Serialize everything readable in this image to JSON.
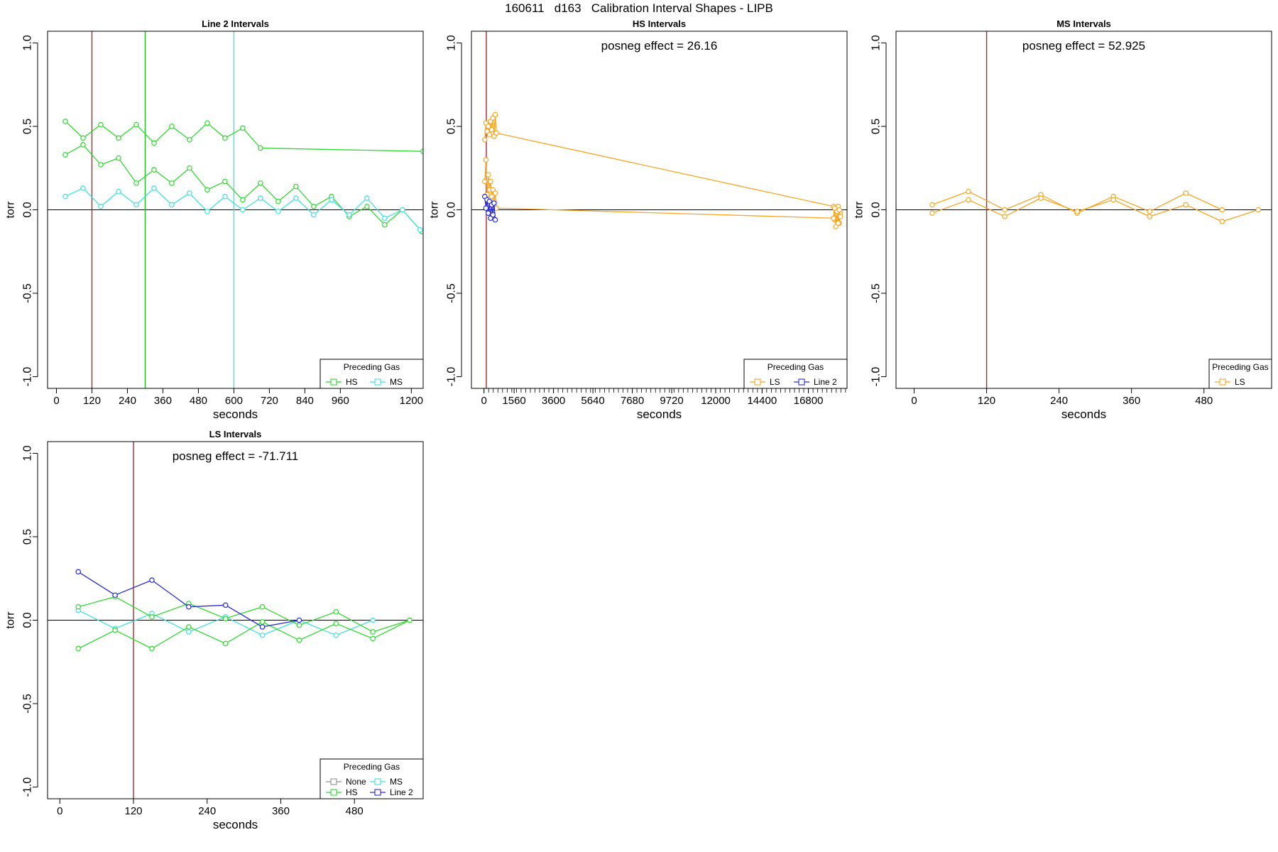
{
  "page": {
    "title": "160611   d163   Calibration Interval Shapes - LIPB"
  },
  "chart_data": [
    {
      "id": "line2",
      "type": "line",
      "title": "Line 2 Intervals",
      "xlabel": "seconds",
      "ylabel": "torr",
      "xlim": [
        -30,
        1240
      ],
      "ylim": [
        -1.07,
        1.07
      ],
      "xticks": [
        0,
        120,
        240,
        360,
        480,
        600,
        720,
        840,
        960,
        1200
      ],
      "yticks": [
        -1.0,
        -0.5,
        0.0,
        0.5,
        1.0
      ],
      "annotation": "",
      "vlines": [
        {
          "x": 120,
          "color": "#a0302a"
        },
        {
          "x": 300,
          "color": "#22c022"
        },
        {
          "x": 600,
          "color": "#30e8e8"
        }
      ],
      "legend": {
        "title": "Preceding Gas",
        "position": "bottom-right",
        "columns": 2
      },
      "series": [
        {
          "name": "HS",
          "color": "#30d830",
          "points": [
            [
              30,
              0.53
            ],
            [
              90,
              0.43
            ],
            [
              150,
              0.51
            ],
            [
              210,
              0.43
            ],
            [
              270,
              0.51
            ],
            [
              330,
              0.4
            ],
            [
              390,
              0.5
            ],
            [
              450,
              0.42
            ],
            [
              510,
              0.52
            ],
            [
              570,
              0.43
            ],
            [
              630,
              0.49
            ],
            [
              690,
              0.37
            ],
            [
              1240,
              0.35
            ]
          ]
        },
        {
          "name": "HS",
          "color": "#30d830",
          "points": [
            [
              30,
              0.33
            ],
            [
              90,
              0.39
            ],
            [
              150,
              0.27
            ],
            [
              210,
              0.31
            ],
            [
              270,
              0.16
            ],
            [
              330,
              0.24
            ],
            [
              390,
              0.16
            ],
            [
              450,
              0.25
            ],
            [
              510,
              0.12
            ],
            [
              570,
              0.17
            ],
            [
              630,
              0.06
            ],
            [
              690,
              0.16
            ],
            [
              750,
              0.05
            ],
            [
              810,
              0.14
            ],
            [
              870,
              0.02
            ],
            [
              930,
              0.08
            ],
            [
              990,
              -0.04
            ],
            [
              1050,
              0.02
            ],
            [
              1110,
              -0.09
            ],
            [
              1170,
              0.0
            ],
            [
              1235,
              -0.13
            ]
          ]
        },
        {
          "name": "MS",
          "color": "#40e0e0",
          "points": [
            [
              30,
              0.08
            ],
            [
              90,
              0.13
            ],
            [
              150,
              0.02
            ],
            [
              210,
              0.11
            ],
            [
              270,
              0.03
            ],
            [
              330,
              0.13
            ],
            [
              390,
              0.03
            ],
            [
              450,
              0.1
            ],
            [
              510,
              -0.01
            ],
            [
              570,
              0.08
            ],
            [
              630,
              0.0
            ],
            [
              690,
              0.07
            ],
            [
              750,
              -0.01
            ],
            [
              810,
              0.07
            ],
            [
              870,
              -0.03
            ],
            [
              930,
              0.06
            ],
            [
              990,
              -0.03
            ],
            [
              1050,
              0.07
            ],
            [
              1110,
              -0.05
            ],
            [
              1170,
              0.0
            ],
            [
              1230,
              -0.12
            ]
          ]
        }
      ]
    },
    {
      "id": "hs",
      "type": "line",
      "title": "HS Intervals",
      "xlabel": "seconds",
      "ylabel": "torr",
      "xlim": [
        -650,
        18800
      ],
      "ylim": [
        -1.07,
        1.07
      ],
      "xticks": [
        0,
        1560,
        3600,
        5640,
        7680,
        9720,
        12000,
        14400,
        16800
      ],
      "yticks": [
        -1.0,
        -0.5,
        0.0,
        0.5,
        1.0
      ],
      "annotation": "posneg effect = 26.16",
      "vlines": [
        {
          "x": 120,
          "color": "#a0302a"
        }
      ],
      "legend": {
        "title": "Preceding Gas",
        "position": "bottom-right",
        "columns": 2
      },
      "series": [
        {
          "name": "LS",
          "color": "#f5a623",
          "points": [
            [
              40,
              0.42
            ],
            [
              100,
              0.52
            ],
            [
              160,
              0.47
            ],
            [
              220,
              0.5
            ],
            [
              280,
              0.45
            ],
            [
              340,
              0.53
            ],
            [
              400,
              0.48
            ],
            [
              460,
              0.55
            ],
            [
              520,
              0.44
            ],
            [
              580,
              0.57
            ],
            [
              640,
              0.46
            ],
            [
              18100,
              0.02
            ],
            [
              18160,
              -0.06
            ],
            [
              18220,
              0.01
            ],
            [
              18280,
              -0.03
            ],
            [
              18340,
              0.02
            ],
            [
              18400,
              -0.08
            ],
            [
              18460,
              -0.02
            ]
          ]
        },
        {
          "name": "LS",
          "color": "#f5a623",
          "points": [
            [
              40,
              0.17
            ],
            [
              100,
              0.3
            ],
            [
              160,
              0.09
            ],
            [
              220,
              0.21
            ],
            [
              280,
              0.12
            ],
            [
              340,
              0.17
            ],
            [
              400,
              0.08
            ],
            [
              460,
              0.12
            ],
            [
              520,
              0.05
            ],
            [
              580,
              0.1
            ],
            [
              640,
              0.01
            ],
            [
              18100,
              -0.05
            ],
            [
              18160,
              0.01
            ],
            [
              18220,
              -0.1
            ],
            [
              18280,
              -0.01
            ],
            [
              18340,
              -0.08
            ],
            [
              18400,
              0.0
            ],
            [
              18460,
              -0.04
            ]
          ]
        },
        {
          "name": "Line 2",
          "color": "#2a2ad8",
          "points": [
            [
              40,
              0.08
            ],
            [
              100,
              0.01
            ],
            [
              160,
              0.06
            ],
            [
              220,
              -0.02
            ],
            [
              280,
              0.05
            ],
            [
              340,
              -0.05
            ],
            [
              400,
              0.03
            ],
            [
              460,
              -0.03
            ],
            [
              520,
              0.04
            ],
            [
              580,
              -0.06
            ]
          ]
        }
      ]
    },
    {
      "id": "ms",
      "type": "line",
      "title": "MS Intervals",
      "xlabel": "seconds",
      "ylabel": "torr",
      "xlim": [
        -30,
        592
      ],
      "ylim": [
        -1.07,
        1.07
      ],
      "xticks": [
        0,
        120,
        240,
        360,
        480
      ],
      "yticks": [
        -1.0,
        -0.5,
        0.0,
        0.5,
        1.0
      ],
      "annotation": "posneg effect = 52.925",
      "vlines": [
        {
          "x": 120,
          "color": "#a0302a"
        }
      ],
      "legend": {
        "title": "Preceding Gas",
        "position": "bottom-right",
        "columns": 1
      },
      "series": [
        {
          "name": "LS",
          "color": "#f5a623",
          "points": [
            [
              30,
              0.03
            ],
            [
              90,
              0.11
            ],
            [
              150,
              0.0
            ],
            [
              210,
              0.09
            ],
            [
              270,
              -0.02
            ],
            [
              330,
              0.08
            ],
            [
              390,
              -0.01
            ],
            [
              450,
              0.1
            ],
            [
              510,
              0.0
            ]
          ]
        },
        {
          "name": "LS",
          "color": "#f5a623",
          "points": [
            [
              30,
              -0.02
            ],
            [
              90,
              0.06
            ],
            [
              150,
              -0.04
            ],
            [
              210,
              0.07
            ],
            [
              270,
              -0.01
            ],
            [
              330,
              0.06
            ],
            [
              390,
              -0.04
            ],
            [
              450,
              0.03
            ],
            [
              510,
              -0.07
            ],
            [
              570,
              0.0
            ]
          ]
        }
      ]
    },
    {
      "id": "ls",
      "type": "line",
      "title": "LS Intervals",
      "xlabel": "seconds",
      "ylabel": "torr",
      "xlim": [
        -20,
        592
      ],
      "ylim": [
        -1.07,
        1.07
      ],
      "xticks": [
        0,
        120,
        240,
        360,
        480
      ],
      "yticks": [
        -1.0,
        -0.5,
        0.0,
        0.5,
        1.0
      ],
      "annotation": "posneg effect = -71.711",
      "vlines": [
        {
          "x": 120,
          "color": "#a0302a"
        }
      ],
      "legend": {
        "title": "Preceding Gas",
        "position": "bottom-right",
        "columns": 2,
        "order": [
          "None",
          "MS",
          "HS",
          "Line 2"
        ]
      },
      "series": [
        {
          "name": "None",
          "color": "#909090",
          "points": []
        },
        {
          "name": "MS",
          "color": "#40e0e0",
          "points": [
            [
              30,
              0.06
            ],
            [
              90,
              -0.05
            ],
            [
              150,
              0.04
            ],
            [
              210,
              -0.07
            ],
            [
              270,
              0.02
            ],
            [
              330,
              -0.09
            ],
            [
              390,
              0.0
            ],
            [
              450,
              -0.09
            ],
            [
              510,
              0.0
            ]
          ]
        },
        {
          "name": "HS",
          "color": "#30d830",
          "points": [
            [
              30,
              0.08
            ],
            [
              90,
              0.14
            ],
            [
              150,
              0.02
            ],
            [
              210,
              0.1
            ],
            [
              270,
              0.01
            ],
            [
              330,
              0.08
            ],
            [
              390,
              -0.03
            ],
            [
              450,
              0.05
            ],
            [
              510,
              -0.07
            ],
            [
              570,
              0.0
            ]
          ]
        },
        {
          "name": "HS",
          "color": "#30d830",
          "points": [
            [
              30,
              -0.17
            ],
            [
              90,
              -0.06
            ],
            [
              150,
              -0.17
            ],
            [
              210,
              -0.04
            ],
            [
              270,
              -0.14
            ],
            [
              330,
              -0.01
            ],
            [
              390,
              -0.12
            ],
            [
              450,
              -0.02
            ],
            [
              510,
              -0.11
            ],
            [
              570,
              0.0
            ]
          ]
        },
        {
          "name": "Line 2",
          "color": "#2a2ad8",
          "points": [
            [
              30,
              0.29
            ],
            [
              90,
              0.15
            ],
            [
              150,
              0.24
            ],
            [
              210,
              0.08
            ],
            [
              270,
              0.09
            ],
            [
              330,
              -0.04
            ],
            [
              390,
              0.0
            ]
          ]
        }
      ]
    }
  ]
}
